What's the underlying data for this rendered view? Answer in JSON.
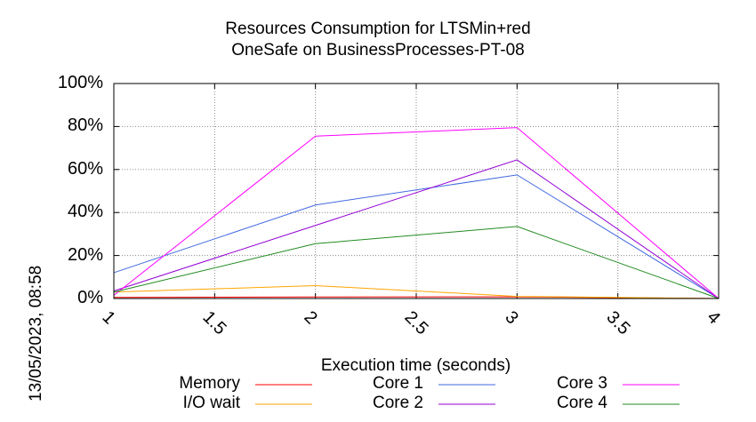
{
  "chart_data": {
    "type": "line",
    "title": "Resources Consumption for LTSMin+red",
    "subtitle": "OneSafe on BusinessProcesses-PT-08",
    "xlabel": "Execution time (seconds)",
    "ylabel": "",
    "xlim": [
      1,
      4
    ],
    "ylim": [
      0,
      100
    ],
    "x_ticks": [
      "1",
      "1.5",
      "2",
      "2.5",
      "3",
      "3.5",
      "4"
    ],
    "y_ticks": [
      "0%",
      "20%",
      "40%",
      "60%",
      "80%",
      "100%"
    ],
    "grid": true,
    "legend_position": "bottom",
    "series": [
      {
        "name": "Memory",
        "color": "#ff0000",
        "x": [
          1,
          2,
          3,
          4
        ],
        "y": [
          0.5,
          0.7,
          0.8,
          0.0
        ]
      },
      {
        "name": "I/O wait",
        "color": "#ffa500",
        "x": [
          1,
          2,
          3,
          4
        ],
        "y": [
          3.0,
          6.0,
          1.0,
          0.0
        ]
      },
      {
        "name": "Core 1",
        "color": "#4169e1",
        "x": [
          1,
          2,
          3,
          4
        ],
        "y": [
          12.0,
          43.5,
          57.5,
          0.0
        ]
      },
      {
        "name": "Core 2",
        "color": "#9400d3",
        "x": [
          1,
          2,
          3,
          4
        ],
        "y": [
          3.5,
          34.0,
          64.5,
          0.0
        ]
      },
      {
        "name": "Core 3",
        "color": "#ff00ff",
        "x": [
          1,
          2,
          3,
          4
        ],
        "y": [
          1.5,
          75.5,
          79.5,
          0.0
        ]
      },
      {
        "name": "Core 4",
        "color": "#228b22",
        "x": [
          1,
          2,
          3,
          4
        ],
        "y": [
          3.0,
          25.5,
          33.5,
          0.0
        ]
      }
    ]
  },
  "timestamp": "13/05/2023, 08:58"
}
